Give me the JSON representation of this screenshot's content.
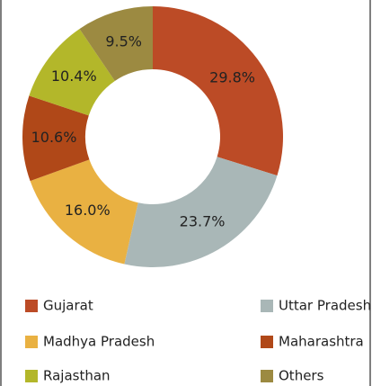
{
  "chart_data": {
    "type": "donut",
    "categories": [
      "Gujarat",
      "Uttar Pradesh",
      "Madhya Pradesh",
      "Maharashtra",
      "Rajasthan",
      "Others"
    ],
    "values": [
      29.8,
      23.7,
      16.0,
      10.6,
      10.4,
      9.5
    ],
    "value_labels": [
      "29.8%",
      "23.7%",
      "16.0%",
      "10.6%",
      "10.4%",
      "9.5%"
    ],
    "colors": [
      "#bc4b26",
      "#a9b7b7",
      "#e9b142",
      "#b04818",
      "#b3b72a",
      "#9c8a41"
    ],
    "legend": "bottom"
  }
}
